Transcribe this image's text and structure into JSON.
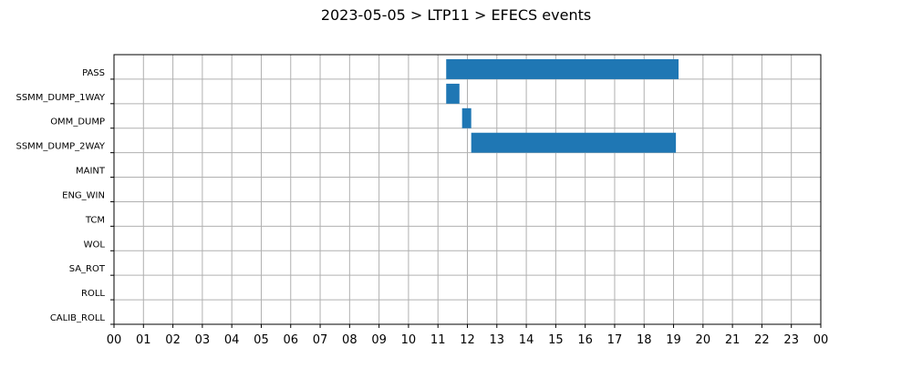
{
  "chart_data": {
    "type": "gantt",
    "title": "2023-05-05 > LTP11 > EFECS events",
    "categories": [
      "PASS",
      "SSMM_DUMP_1WAY",
      "OMM_DUMP",
      "SSMM_DUMP_2WAY",
      "MAINT",
      "ENG_WIN",
      "TCM",
      "WOL",
      "SA_ROT",
      "ROLL",
      "CALIB_ROLL"
    ],
    "x_ticks": [
      "00",
      "01",
      "02",
      "03",
      "04",
      "05",
      "06",
      "07",
      "08",
      "09",
      "10",
      "11",
      "12",
      "13",
      "14",
      "15",
      "16",
      "17",
      "18",
      "19",
      "20",
      "21",
      "22",
      "23",
      "00"
    ],
    "xlim": [
      0,
      24
    ],
    "grid": true,
    "bar_color": "#1f77b4",
    "bars": [
      {
        "category": "PASS",
        "start": 11.28,
        "end": 19.17
      },
      {
        "category": "SSMM_DUMP_1WAY",
        "start": 11.28,
        "end": 11.73
      },
      {
        "category": "OMM_DUMP",
        "start": 11.82,
        "end": 12.13
      },
      {
        "category": "SSMM_DUMP_2WAY",
        "start": 12.13,
        "end": 19.08
      }
    ]
  }
}
